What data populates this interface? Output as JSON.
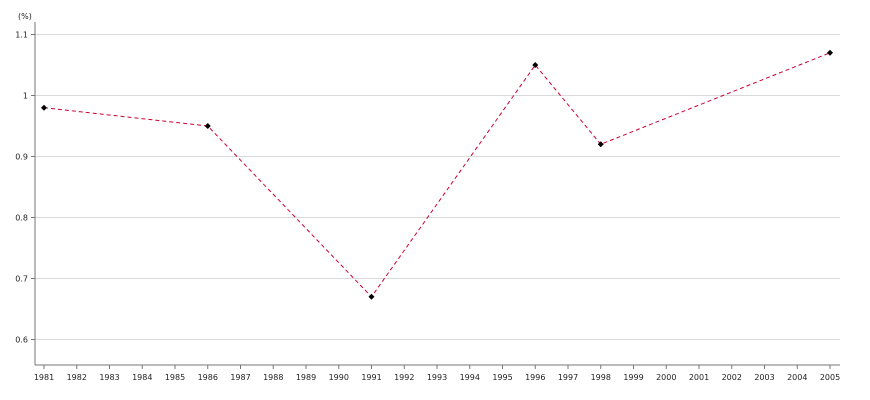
{
  "chart_data": {
    "type": "line",
    "unit_label": "(%)",
    "x": [
      1981,
      1986,
      1991,
      1996,
      1998,
      2005
    ],
    "series": [
      {
        "values": [
          0.98,
          0.95,
          0.67,
          1.05,
          0.92,
          1.07
        ]
      }
    ],
    "x_ticks": [
      "1981",
      "1982",
      "1983",
      "1984",
      "1985",
      "1986",
      "1987",
      "1988",
      "1989",
      "1990",
      "1991",
      "1992",
      "1993",
      "1994",
      "1995",
      "1996",
      "1997",
      "1998",
      "1999",
      "2000",
      "2001",
      "2002",
      "2003",
      "2004",
      "2005"
    ],
    "y_ticks": [
      "0.6",
      "0.7",
      "0.8",
      "0.9",
      "1",
      "1.1"
    ],
    "xlim": [
      1981,
      2005
    ],
    "ylim": [
      0.55,
      1.1
    ],
    "grid": true,
    "colors": {
      "line": "#cc0033",
      "marker": "#000000",
      "grid": "#d9d9d9",
      "axis": "#777777"
    }
  }
}
